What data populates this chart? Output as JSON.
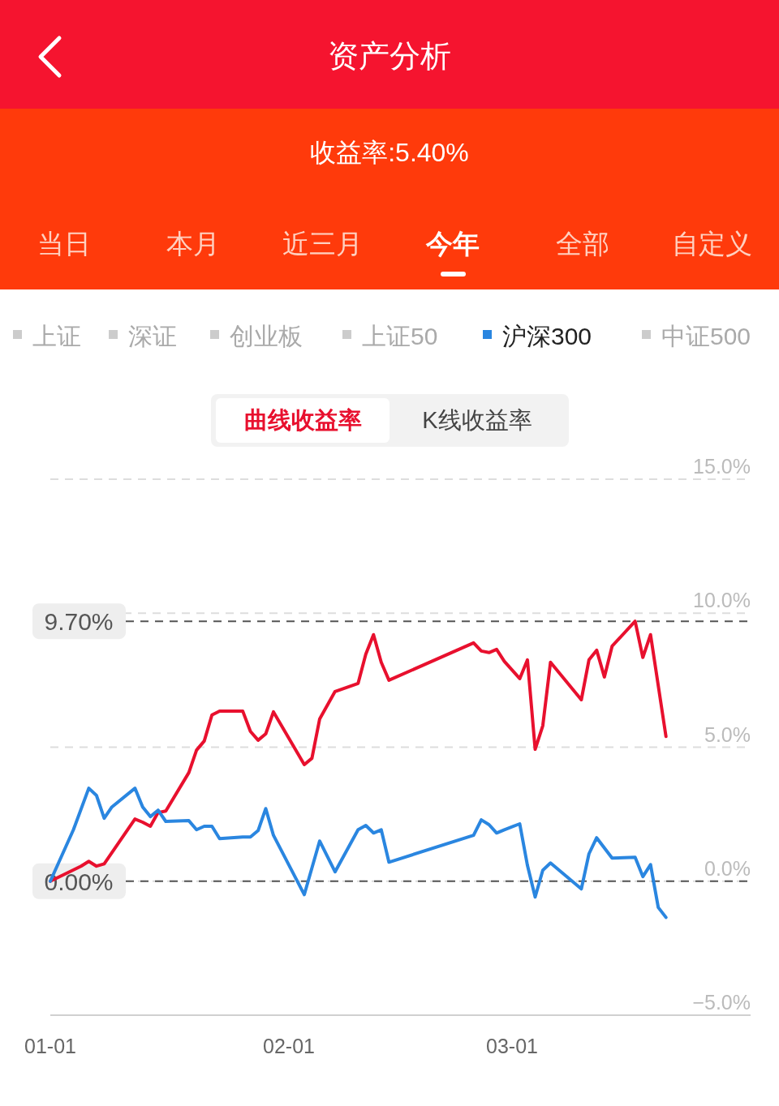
{
  "chart_data": {
    "type": "line",
    "title": "资产分析",
    "subtitle": "收益率:5.40%",
    "annotations": [
      "当日",
      "本月",
      "近三月",
      "今年",
      "全部",
      "自定义",
      "曲线收益率",
      "K线收益率"
    ],
    "xlim": [
      "--01-01",
      "--04-01"
    ],
    "xticks": [
      {
        "value": "--01-01",
        "label": "01-01"
      },
      {
        "value": "--02-01",
        "label": "02-01"
      },
      {
        "value": "--03-01",
        "label": "03-01"
      }
    ],
    "ylim": [
      -5,
      15
    ],
    "yticks": [
      {
        "value": -5,
        "label": "−5.0%"
      },
      {
        "value": 0,
        "label": "0.0%"
      },
      {
        "value": 5,
        "label": "5.0%"
      },
      {
        "value": 10,
        "label": "10.0%"
      },
      {
        "value": 15,
        "label": "15.0%"
      }
    ],
    "grid": "y",
    "legend": "top",
    "line_style": "solid",
    "ref_lines": [
      {
        "axis": "y",
        "value": 9.7,
        "label": "9.70%",
        "color": "#555555",
        "line_style": "dashed"
      },
      {
        "axis": "y",
        "value": 0,
        "label": "0.00%",
        "color": "#555555",
        "line_style": "dashed"
      }
    ],
    "series": [
      {
        "color": "#e8102e",
        "x": [
          "--01-01",
          "--01-05",
          "--01-06",
          "--01-07",
          "--01-08",
          "--01-12",
          "--01-13",
          "--01-14",
          "--01-15",
          "--01-16",
          "--01-19",
          "--01-20",
          "--01-21",
          "--01-22",
          "--01-23",
          "--01-26",
          "--01-27",
          "--01-28",
          "--01-29",
          "--01-30",
          "--02-03",
          "--02-04",
          "--02-05",
          "--02-07",
          "--02-10",
          "--02-11",
          "--02-12",
          "--02-13",
          "--02-14",
          "--02-25",
          "--02-26",
          "--02-27",
          "--02-28",
          "--02-29",
          "--03-02",
          "--03-03",
          "--03-04",
          "--03-05",
          "--03-06",
          "--03-10",
          "--03-11",
          "--03-12",
          "--03-13",
          "--03-14",
          "--03-17",
          "--03-18",
          "--03-19",
          "--03-21"
        ],
        "values": [
          0,
          0.56,
          0.74,
          0.56,
          0.65,
          2.32,
          2.2,
          2.05,
          2.56,
          2.62,
          4.05,
          4.89,
          5.23,
          6.2,
          6.35,
          6.35,
          5.59,
          5.26,
          5.5,
          6.32,
          4.35,
          4.59,
          6.05,
          7.08,
          7.38,
          8.47,
          9.2,
          8.17,
          7.5,
          8.89,
          8.59,
          8.53,
          8.65,
          8.2,
          7.56,
          8.26,
          4.92,
          5.8,
          8.17,
          6.77,
          8.26,
          8.62,
          7.62,
          8.77,
          9.7,
          8.35,
          9.2,
          5.4
        ]
      },
      {
        "name": "上证",
        "color": "#cccccc",
        "values": [
          null
        ]
      },
      {
        "name": "深证",
        "color": "#cccccc",
        "values": [
          null
        ]
      },
      {
        "name": "创业板",
        "color": "#cccccc",
        "values": [
          null
        ]
      },
      {
        "name": "上证50",
        "color": "#cccccc",
        "values": [
          null
        ]
      },
      {
        "name": "沪深300",
        "color": "#2a86e0",
        "x": [
          "--01-01",
          "--01-04",
          "--01-06",
          "--01-07",
          "--01-08",
          "--01-09",
          "--01-12",
          "--01-13",
          "--01-14",
          "--01-15",
          "--01-16",
          "--01-19",
          "--01-20",
          "--01-21",
          "--01-22",
          "--01-23",
          "--01-26",
          "--01-27",
          "--01-28",
          "--01-29",
          "--01-30",
          "--02-03",
          "--02-05",
          "--02-07",
          "--02-10",
          "--02-11",
          "--02-12",
          "--02-13",
          "--02-14",
          "--02-25",
          "--02-26",
          "--02-27",
          "--02-28",
          "--02-29",
          "--03-02",
          "--03-03",
          "--03-04",
          "--03-05",
          "--03-06",
          "--03-10",
          "--03-11",
          "--03-12",
          "--03-14",
          "--03-17",
          "--03-18",
          "--03-19",
          "--03-20",
          "--03-21"
        ],
        "values": [
          0,
          1.92,
          3.47,
          3.2,
          2.35,
          2.77,
          3.47,
          2.77,
          2.41,
          2.65,
          2.23,
          2.26,
          1.92,
          2.05,
          2.05,
          1.59,
          1.65,
          1.65,
          1.89,
          2.71,
          1.71,
          -0.5,
          1.5,
          0.35,
          1.92,
          2.08,
          1.8,
          1.92,
          0.71,
          1.71,
          2.29,
          2.11,
          1.8,
          1.92,
          2.14,
          0.59,
          -0.59,
          0.41,
          0.68,
          -0.29,
          1.02,
          1.62,
          0.86,
          0.89,
          0.17,
          0.62,
          -0.98,
          -1.35
        ]
      },
      {
        "name": "中证500",
        "color": "#cccccc",
        "values": [
          null
        ]
      }
    ]
  }
}
